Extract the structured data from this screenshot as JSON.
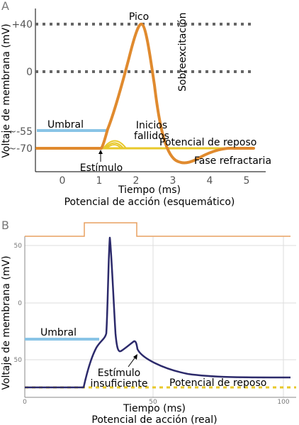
{
  "colors": {
    "orange": "#E08A2E",
    "orange_light": "#E8A060",
    "blue": "#89C4E6",
    "yellow": "#E8C82A",
    "navy": "#2C2A6B",
    "dots": "#666666",
    "grid": "#DDDDDD"
  },
  "panel_a": {
    "letter": "A",
    "ylabel": "Voltaje de membrana (mV)",
    "xlabel": "Tiempo (ms)",
    "caption": "Potencial de acción (esquemático)",
    "y_ticks": [
      "+40",
      "0",
      "~-55",
      "~-70"
    ],
    "x_ticks": [
      "0",
      "1",
      "2",
      "3",
      "4",
      "5"
    ],
    "labels": {
      "pico": "Pico",
      "sobreexcitacion": "Sobreexcitación",
      "umbral": "Umbral",
      "inicios_1": "Inicios",
      "inicios_2": "fallidos",
      "potencial_reposo": "Potencial de reposo",
      "fase_refractaria": "Fase refractaria",
      "estimulo": "Estímulo"
    }
  },
  "panel_b": {
    "letter": "B",
    "ylabel": "Voltaje de membrana (mV)",
    "xlabel": "Tiempo (ms)",
    "caption": "Potencial de acción (real)",
    "y_ticks": [
      "50",
      "0",
      "50"
    ],
    "x_ticks": [
      "0",
      "50",
      "100"
    ],
    "labels": {
      "umbral": "Umbral",
      "estimulo_1": "Estímulo",
      "estimulo_2": "insuficiente",
      "potencial_reposo": "Potencial de reposo"
    }
  }
}
